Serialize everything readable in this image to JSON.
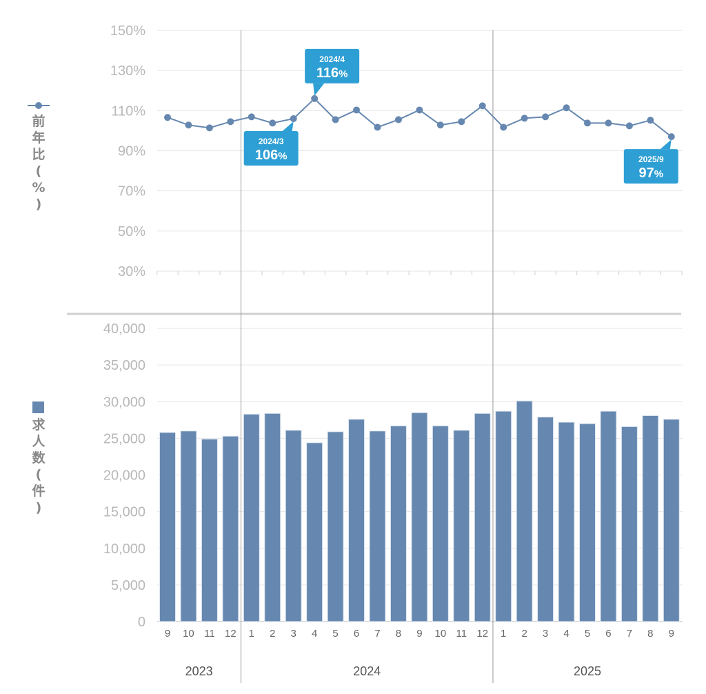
{
  "chart_data": [
    {
      "type": "line",
      "title": "",
      "legend_label": "前年比(%)",
      "ylabel": "前年比(%)",
      "ylim": [
        30,
        150
      ],
      "yticks": [
        "150%",
        "130%",
        "110%",
        "90%",
        "70%",
        "50%",
        "30%"
      ],
      "ytick_values": [
        150,
        130,
        110,
        90,
        70,
        50,
        30
      ],
      "grid": true,
      "color": "#6688b0",
      "values": [
        106.6,
        102.8,
        101.4,
        104.5,
        106.9,
        103.8,
        106,
        116,
        105.5,
        110.3,
        101.7,
        105.5,
        110.3,
        102.8,
        104.5,
        112.4,
        101.7,
        106.2,
        106.9,
        111.4,
        103.8,
        103.8,
        102.4,
        105.2,
        97
      ],
      "annotations": [
        {
          "index": 6,
          "date": "2024/3",
          "value": "106",
          "unit": "%",
          "position": "below"
        },
        {
          "index": 7,
          "date": "2024/4",
          "value": "116",
          "unit": "%",
          "position": "above"
        },
        {
          "index": 24,
          "date": "2025/9",
          "value": "97",
          "unit": "%",
          "position": "below"
        }
      ],
      "annotation_color": "#2e9fd4"
    },
    {
      "type": "bar",
      "title": "",
      "legend_label": "求人数(件)",
      "ylabel": "求人数(件)",
      "ylim": [
        0,
        40000
      ],
      "yticks": [
        "40,000",
        "35,000",
        "30,000",
        "25,000",
        "20,000",
        "15,000",
        "10,000",
        "5,000",
        "0"
      ],
      "ytick_values": [
        40000,
        35000,
        30000,
        25000,
        20000,
        15000,
        10000,
        5000,
        0
      ],
      "grid": true,
      "color": "#6688b0",
      "values": [
        25800,
        26000,
        24900,
        25300,
        28300,
        28400,
        26100,
        24400,
        25900,
        27600,
        26000,
        26700,
        28500,
        26700,
        26100,
        28400,
        28700,
        30100,
        27900,
        27200,
        27000,
        28700,
        26600,
        28100,
        27600
      ]
    }
  ],
  "categories": [
    "9",
    "10",
    "11",
    "12",
    "1",
    "2",
    "3",
    "4",
    "5",
    "6",
    "7",
    "8",
    "9",
    "10",
    "11",
    "12",
    "1",
    "2",
    "3",
    "4",
    "5",
    "6",
    "7",
    "8",
    "9"
  ],
  "years": [
    {
      "label": "2023",
      "start": 0,
      "end": 3
    },
    {
      "label": "2024",
      "start": 4,
      "end": 15
    },
    {
      "label": "2025",
      "start": 16,
      "end": 24
    }
  ]
}
